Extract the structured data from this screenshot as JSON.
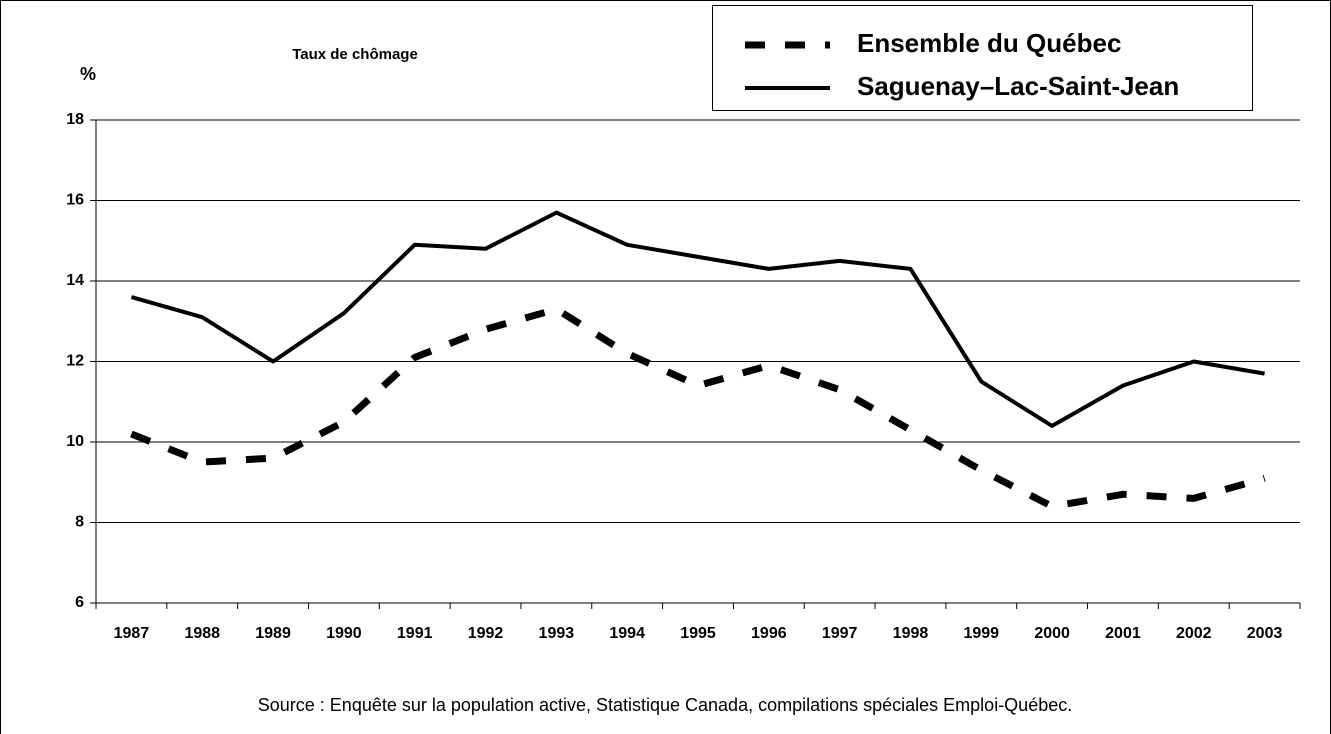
{
  "chart_data": {
    "type": "line",
    "title": "Taux de chômage",
    "y_label": "%",
    "source": "Source : Enquête sur la population active, Statistique Canada, compilations spéciales Emploi-Québec.",
    "categories": [
      "1987",
      "1988",
      "1989",
      "1990",
      "1991",
      "1992",
      "1993",
      "1994",
      "1995",
      "1996",
      "1997",
      "1998",
      "1999",
      "2000",
      "2001",
      "2002",
      "2003"
    ],
    "series": [
      {
        "name": "Ensemble du Québec",
        "color": "#000000",
        "style": "dashed",
        "values": [
          10.2,
          9.5,
          9.6,
          10.5,
          12.1,
          12.8,
          13.3,
          12.2,
          11.4,
          11.9,
          11.3,
          10.3,
          9.3,
          8.4,
          8.7,
          8.6,
          9.1
        ]
      },
      {
        "name": "Saguenay–Lac-Saint-Jean",
        "color": "#000000",
        "style": "solid",
        "values": [
          13.6,
          13.1,
          12.0,
          13.2,
          14.9,
          14.8,
          15.7,
          14.9,
          14.6,
          14.3,
          14.5,
          14.3,
          11.5,
          10.4,
          11.4,
          12.0,
          11.7
        ]
      }
    ],
    "ylim": [
      6,
      18
    ],
    "yticks": [
      6,
      8,
      10,
      12,
      14,
      16,
      18
    ],
    "grid": true,
    "legend": "top-right"
  }
}
